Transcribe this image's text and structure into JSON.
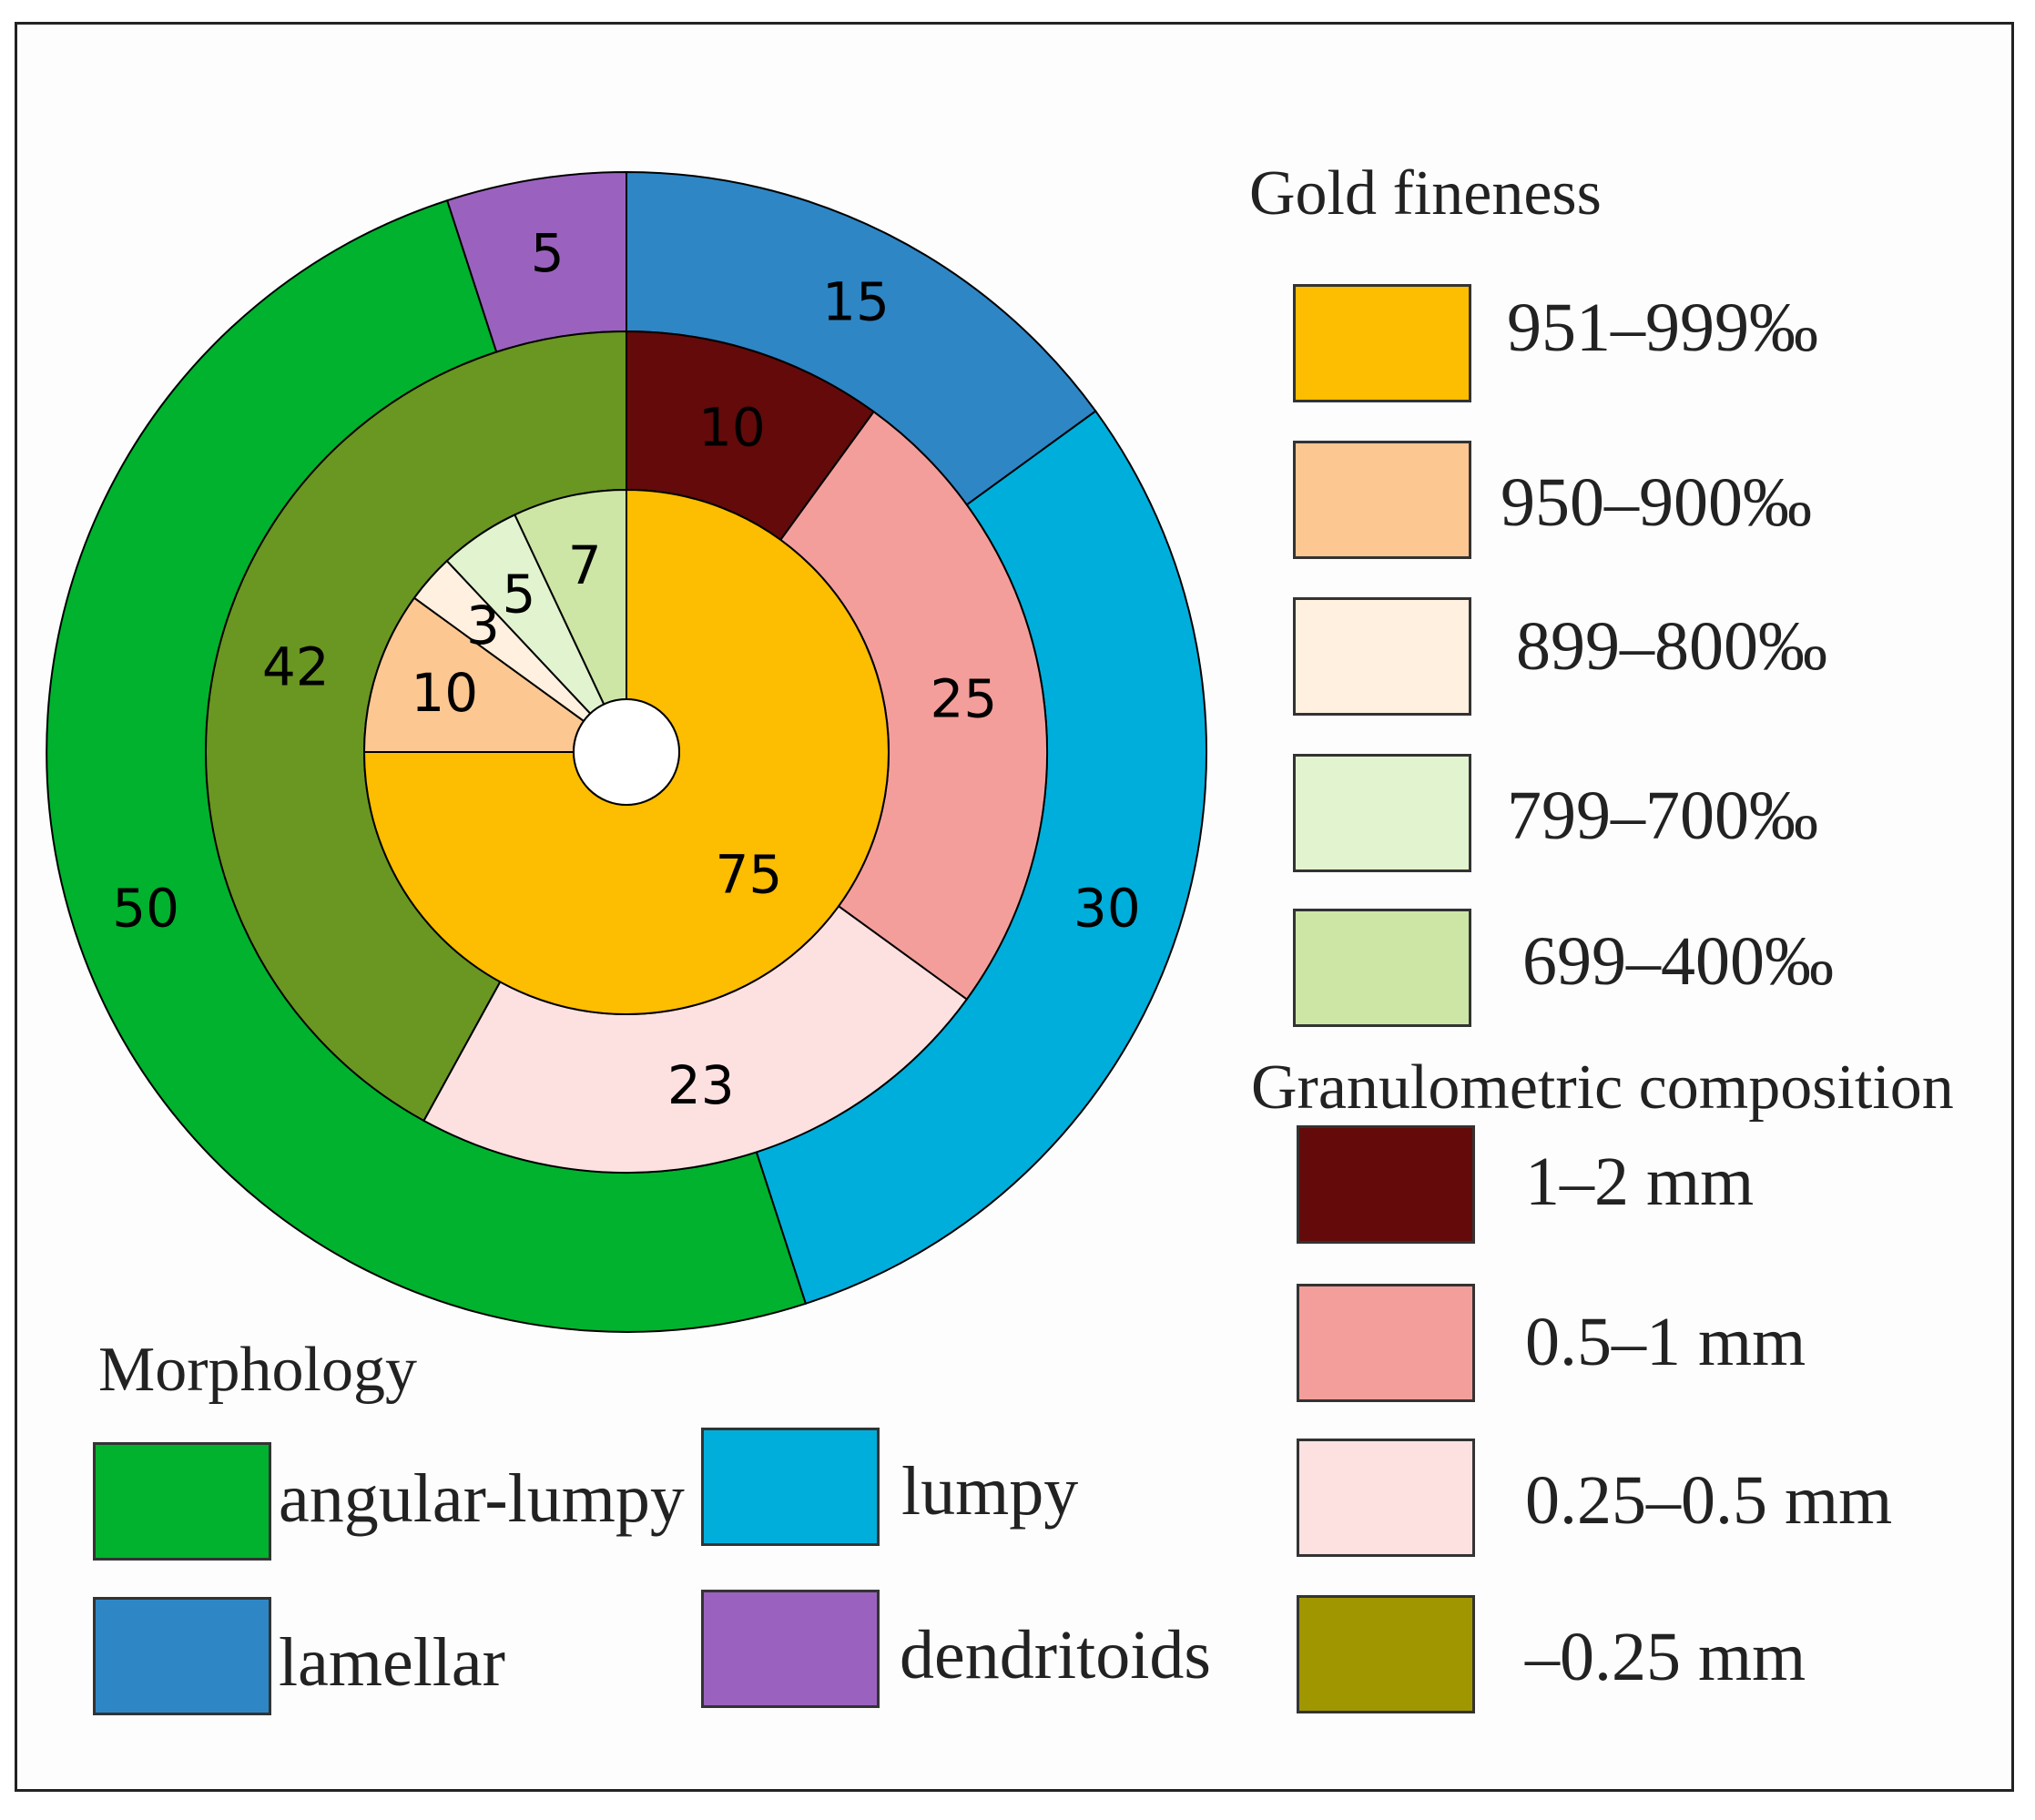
{
  "chart_data": {
    "type": "pie",
    "subtype": "nested-donut",
    "rings": [
      {
        "name": "Morphology",
        "role": "outer ring",
        "slices": [
          {
            "label": "lamellar",
            "value": 15,
            "color": "#2e86c5"
          },
          {
            "label": "lumpy",
            "value": 30,
            "color": "#00aedb"
          },
          {
            "label": "angular-lumpy",
            "value": 50,
            "color": "#00b22e"
          },
          {
            "label": "dendritoids",
            "value": 5,
            "color": "#9a62be"
          }
        ]
      },
      {
        "name": "Granulometric composition",
        "role": "middle ring",
        "slices": [
          {
            "label": "1–2 mm",
            "value": 10,
            "color": "#640a0a"
          },
          {
            "label": "0.5–1 mm",
            "value": 25,
            "color": "#f49e9b"
          },
          {
            "label": "0.25–0.5 mm",
            "value": 23,
            "color": "#fde1e1"
          },
          {
            "label": "–0.25 mm",
            "value": 42,
            "color": "#6a9622"
          }
        ]
      },
      {
        "name": "Gold fineness",
        "role": "inner ring",
        "slices": [
          {
            "label": "951–999‰",
            "value": 75,
            "color": "#fdbd00"
          },
          {
            "label": "950–900‰",
            "value": 10,
            "color": "#fdc792"
          },
          {
            "label": "899–800‰",
            "value": 3,
            "color": "#fff0df"
          },
          {
            "label": "799–700‰",
            "value": 5,
            "color": "#e2f3cf"
          },
          {
            "label": "699–400‰",
            "value": 7,
            "color": "#cde6a6"
          }
        ]
      }
    ]
  },
  "legends": {
    "morphology": {
      "title": "Morphology",
      "items": [
        {
          "label": "angular-lumpy",
          "color": "#00b22e"
        },
        {
          "label": "lumpy",
          "color": "#00aedb"
        },
        {
          "label": "lamellar",
          "color": "#2e86c5"
        },
        {
          "label": "dendritoids",
          "color": "#9a62be"
        }
      ]
    },
    "fineness": {
      "title": "Gold fineness",
      "items": [
        {
          "label": "951–999‰",
          "color": "#fdbd00"
        },
        {
          "label": "950–900‰",
          "color": "#fdc792"
        },
        {
          "label": "899–800‰",
          "color": "#fff0df"
        },
        {
          "label": "799–700‰",
          "color": "#e2f3cf"
        },
        {
          "label": "699–400‰",
          "color": "#cde6a6"
        }
      ]
    },
    "granulometric": {
      "title": "Granulometric composition",
      "items": [
        {
          "label": "1–2 mm",
          "color": "#640a0a"
        },
        {
          "label": "0.5–1 mm",
          "color": "#f49e9b"
        },
        {
          "label": "0.25–0.5 mm",
          "color": "#fde1e1"
        },
        {
          "label": "–0.25 mm",
          "color": "#a09600"
        }
      ]
    }
  }
}
